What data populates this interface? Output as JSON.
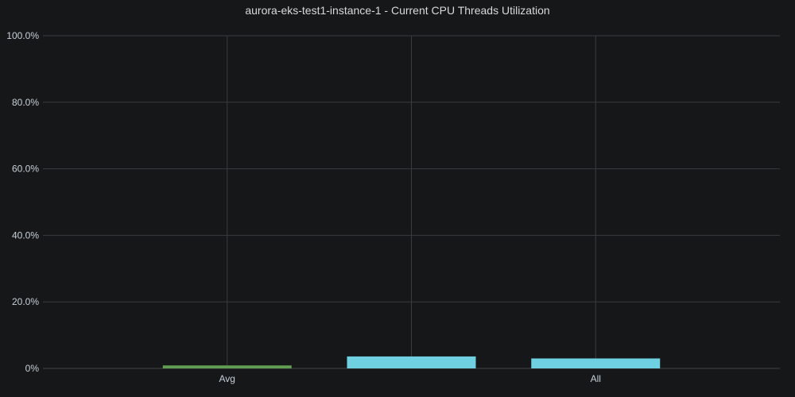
{
  "chart_data": {
    "type": "bar",
    "title": "aurora-eks-test1-instance-1 - Current CPU Threads Utilization",
    "xlabel": "",
    "ylabel": "",
    "ylim": [
      0,
      100
    ],
    "y_ticks": [
      0,
      20,
      40,
      60,
      80,
      100
    ],
    "y_tick_labels": [
      "0%",
      "20.0%",
      "40.0%",
      "60.0%",
      "80.0%",
      "100.0%"
    ],
    "categories": [
      "Avg",
      "",
      "All"
    ],
    "values": [
      0.9,
      3.6,
      3.0
    ],
    "colors": [
      "#629e51",
      "#6ed0e0",
      "#6ed0e0"
    ],
    "grid": true,
    "legend": "none"
  }
}
